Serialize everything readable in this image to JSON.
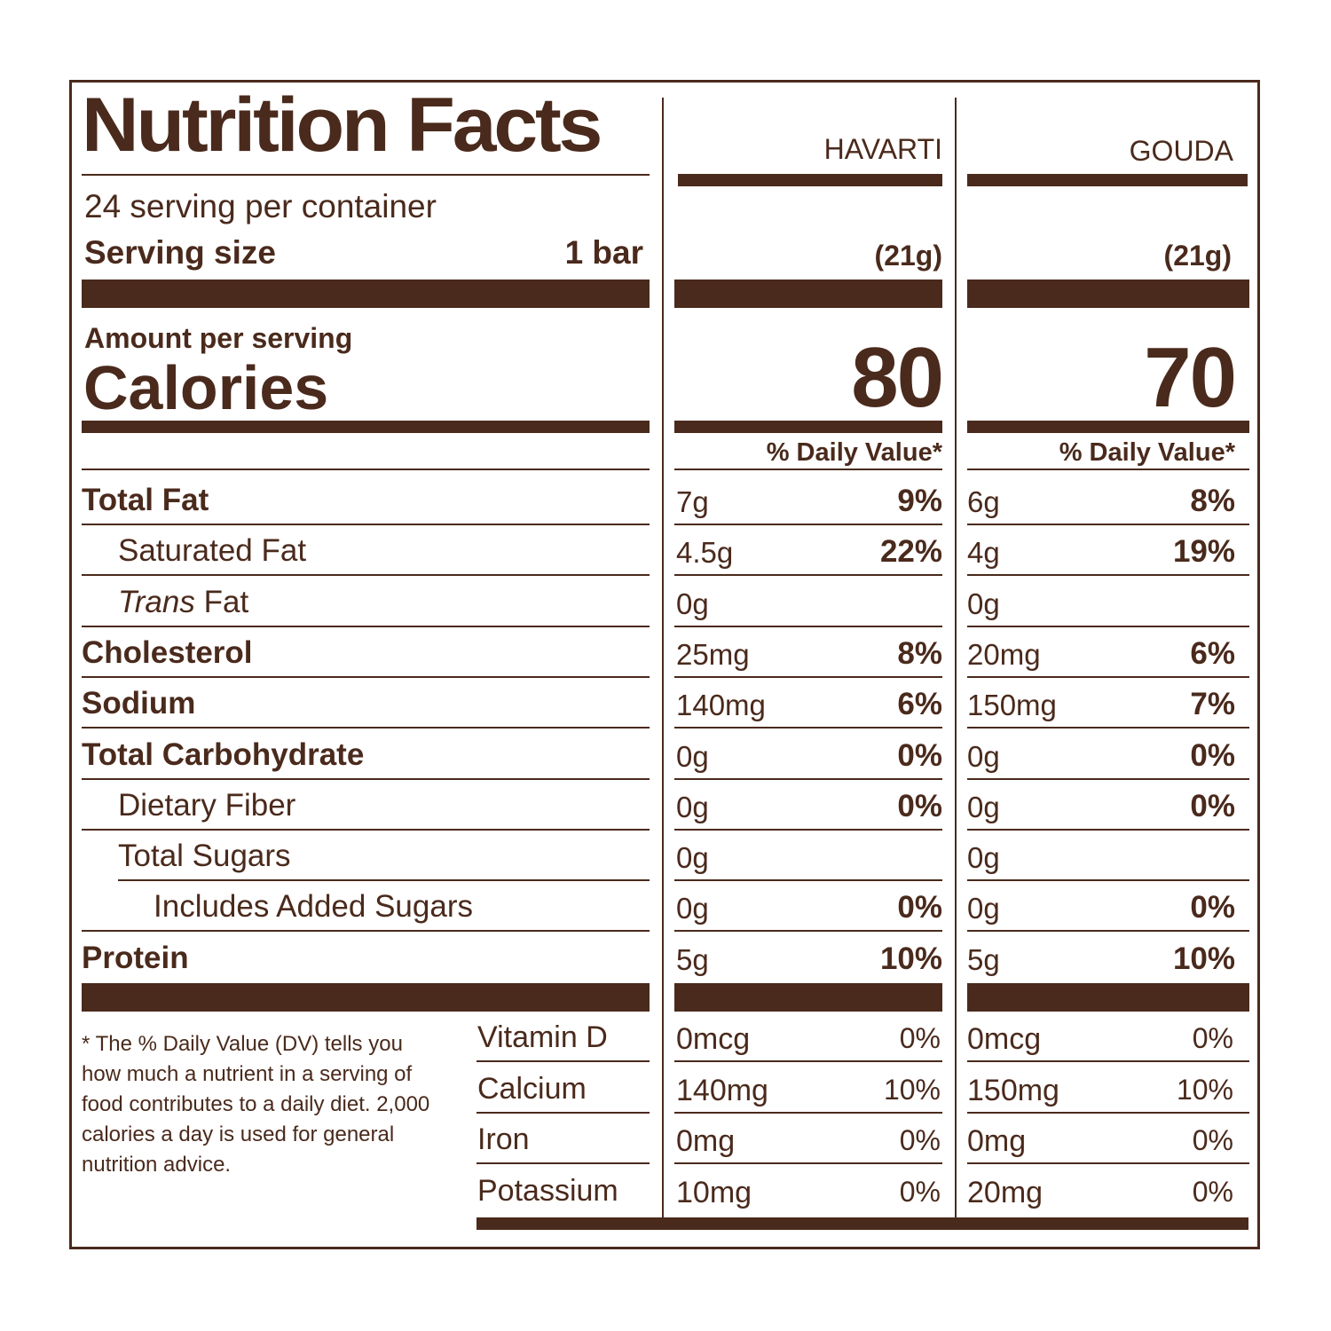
{
  "title": "Nutrition Facts",
  "servings_per_container": "24 serving per container",
  "serving_size_label": "Serving size",
  "serving_size_value": "1 bar",
  "amount_per_serving": "Amount per serving",
  "calories_label": "Calories",
  "daily_value_header": "% Daily Value*",
  "products": [
    {
      "name": "HAVARTI",
      "serving_weight": "(21g)",
      "calories": "80"
    },
    {
      "name": "GOUDA",
      "serving_weight": "(21g)",
      "calories": "70"
    }
  ],
  "nutrients": [
    {
      "label": "Total Fat",
      "style": "bold",
      "values": [
        [
          "7g",
          "9%"
        ],
        [
          "6g",
          "8%"
        ]
      ]
    },
    {
      "label": "Saturated Fat",
      "style": "indent",
      "values": [
        [
          "4.5g",
          "22%"
        ],
        [
          "4g",
          "19%"
        ]
      ]
    },
    {
      "label": "Trans",
      "label_suffix": " Fat",
      "style": "indent-italic",
      "values": [
        [
          "0g",
          ""
        ],
        [
          "0g",
          ""
        ]
      ]
    },
    {
      "label": "Cholesterol",
      "style": "bold",
      "values": [
        [
          "25mg",
          "8%"
        ],
        [
          "20mg",
          "6%"
        ]
      ]
    },
    {
      "label": "Sodium",
      "style": "bold",
      "values": [
        [
          "140mg",
          "6%"
        ],
        [
          "150mg",
          "7%"
        ]
      ]
    },
    {
      "label": "Total Carbohydrate",
      "style": "bold",
      "values": [
        [
          "0g",
          "0%"
        ],
        [
          "0g",
          "0%"
        ]
      ]
    },
    {
      "label": "Dietary Fiber",
      "style": "indent",
      "values": [
        [
          "0g",
          "0%"
        ],
        [
          "0g",
          "0%"
        ]
      ]
    },
    {
      "label": "Total Sugars",
      "style": "indent",
      "values": [
        [
          "0g",
          ""
        ],
        [
          "0g",
          ""
        ]
      ]
    },
    {
      "label": "Includes Added Sugars",
      "style": "indent2",
      "values": [
        [
          "0g",
          "0%"
        ],
        [
          "0g",
          "0%"
        ]
      ]
    },
    {
      "label": "Protein",
      "style": "bold",
      "values": [
        [
          "5g",
          "10%"
        ],
        [
          "5g",
          "10%"
        ]
      ]
    }
  ],
  "vitamins": [
    {
      "label": "Vitamin D",
      "values": [
        [
          "0mcg",
          "0%"
        ],
        [
          "0mcg",
          "0%"
        ]
      ]
    },
    {
      "label": "Calcium",
      "values": [
        [
          "140mg",
          "10%"
        ],
        [
          "150mg",
          "10%"
        ]
      ]
    },
    {
      "label": "Iron",
      "values": [
        [
          "0mg",
          "0%"
        ],
        [
          "0mg",
          "0%"
        ]
      ]
    },
    {
      "label": "Potassium",
      "values": [
        [
          "10mg",
          "0%"
        ],
        [
          "20mg",
          "0%"
        ]
      ]
    }
  ],
  "footnote": "* The % Daily Value (DV) tells you how much a nutrient in a serving of food contributes to a daily diet. 2,000 calories a day is used for general nutrition advice.",
  "colors": {
    "ink": "#4a2a1c",
    "background": "#ffffff"
  }
}
